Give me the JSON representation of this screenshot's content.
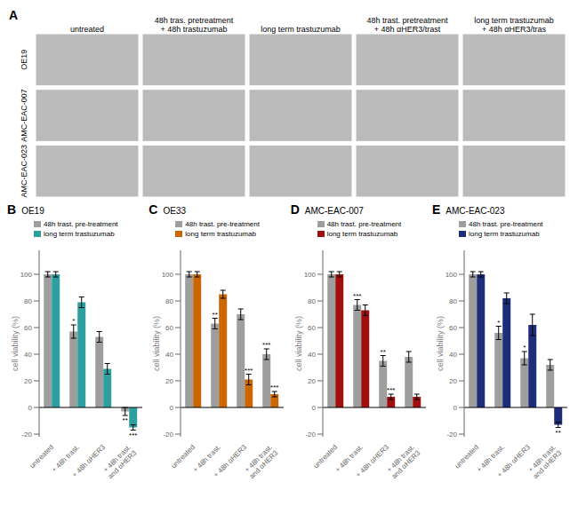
{
  "chart_data": [
    {
      "type": "image_grid",
      "annotations": [
        "A"
      ],
      "x": [
        "untreated",
        "48h tras. pretreatment\n+ 48h trastuzumab",
        "long term trastuzumab",
        "48h trast. pretreatment\n+ 48h αHER3/trast",
        "long term trastuzumab\n+ 48h αHER3/tras"
      ],
      "y": [
        "OE19",
        "AMC-EAC-007",
        "AMC-EAC-023"
      ]
    },
    {
      "type": "bar",
      "annotations": [
        "B"
      ],
      "title": "OE19",
      "ylabel": "cell viability (%)",
      "categories": [
        "untreated",
        "+ 48h trast.",
        "+ 48h αHER3",
        "+ 48h trast.\nand αHER3"
      ],
      "ylim": [
        -22,
        118
      ],
      "yticks": [
        -20,
        0,
        20,
        40,
        60,
        80,
        100
      ],
      "grid": false,
      "legend": "upper left",
      "series": [
        {
          "name": "48h trast. pre-treatment",
          "color": "#9E9E9E",
          "values": [
            100,
            57,
            53,
            -3
          ],
          "errors": [
            2,
            5,
            4,
            3
          ],
          "annotations": [
            null,
            "*",
            null,
            "**"
          ]
        },
        {
          "name": "long term trastuzumab",
          "color": "#2E9FA0",
          "values": [
            100,
            79,
            29,
            -15
          ],
          "errors": [
            2,
            4,
            4,
            2
          ],
          "annotations": [
            null,
            null,
            null,
            "***"
          ]
        }
      ]
    },
    {
      "type": "bar",
      "annotations": [
        "C"
      ],
      "title": "OE33",
      "ylabel": "cell viability (%)",
      "categories": [
        "untreated",
        "+ 48h trast.",
        "+ 48h αHER3",
        "+ 48h trast.\nand αHER3"
      ],
      "ylim": [
        -22,
        118
      ],
      "yticks": [
        -20,
        0,
        20,
        40,
        60,
        80,
        100
      ],
      "grid": false,
      "legend": "upper left",
      "series": [
        {
          "name": "48h trast. pre-treatment",
          "color": "#9E9E9E",
          "values": [
            100,
            63,
            70,
            40
          ],
          "errors": [
            2,
            4,
            4,
            4
          ],
          "annotations": [
            null,
            "**",
            null,
            "***"
          ]
        },
        {
          "name": "long term trastuzumab",
          "color": "#CC6600",
          "values": [
            100,
            85,
            21,
            10
          ],
          "errors": [
            2,
            3,
            4,
            2
          ],
          "annotations": [
            null,
            null,
            "***",
            "***"
          ]
        }
      ]
    },
    {
      "type": "bar",
      "annotations": [
        "D"
      ],
      "title": "AMC-EAC-007",
      "ylabel": "cell viability (%)",
      "categories": [
        "untreated",
        "+ 48h trast.",
        "+ 48h αHER3",
        "+ 48h trast.\nand αHER3"
      ],
      "ylim": [
        -22,
        118
      ],
      "yticks": [
        -20,
        0,
        20,
        40,
        60,
        80,
        100
      ],
      "grid": false,
      "legend": "upper left",
      "series": [
        {
          "name": "48h trast. pre-treatment",
          "color": "#9E9E9E",
          "values": [
            100,
            77,
            35,
            38
          ],
          "errors": [
            2,
            4,
            4,
            4
          ],
          "annotations": [
            null,
            "***",
            "**",
            null
          ]
        },
        {
          "name": "long term trastuzumab",
          "color": "#A01010",
          "values": [
            100,
            73,
            8,
            8
          ],
          "errors": [
            2,
            4,
            2,
            2
          ],
          "annotations": [
            null,
            null,
            "***",
            null
          ]
        }
      ]
    },
    {
      "type": "bar",
      "annotations": [
        "E"
      ],
      "title": "AMC-EAC-023",
      "ylabel": "cell viability (%)",
      "categories": [
        "untreated",
        "+ 48h trast.",
        "+ 48h αHER3",
        "+ 48h trast.\nand αHER3"
      ],
      "ylim": [
        -22,
        118
      ],
      "yticks": [
        -20,
        0,
        20,
        40,
        60,
        80,
        100
      ],
      "grid": false,
      "legend": "upper left",
      "series": [
        {
          "name": "48h trast. pre-treatment",
          "color": "#9E9E9E",
          "values": [
            100,
            56,
            37,
            32
          ],
          "errors": [
            2,
            5,
            5,
            4
          ],
          "annotations": [
            null,
            "*",
            "*",
            null
          ]
        },
        {
          "name": "long term trastuzumab",
          "color": "#1C2D7A",
          "values": [
            100,
            82,
            62,
            -13
          ],
          "errors": [
            2,
            4,
            8,
            2
          ],
          "annotations": [
            null,
            null,
            null,
            "**"
          ]
        }
      ]
    }
  ]
}
